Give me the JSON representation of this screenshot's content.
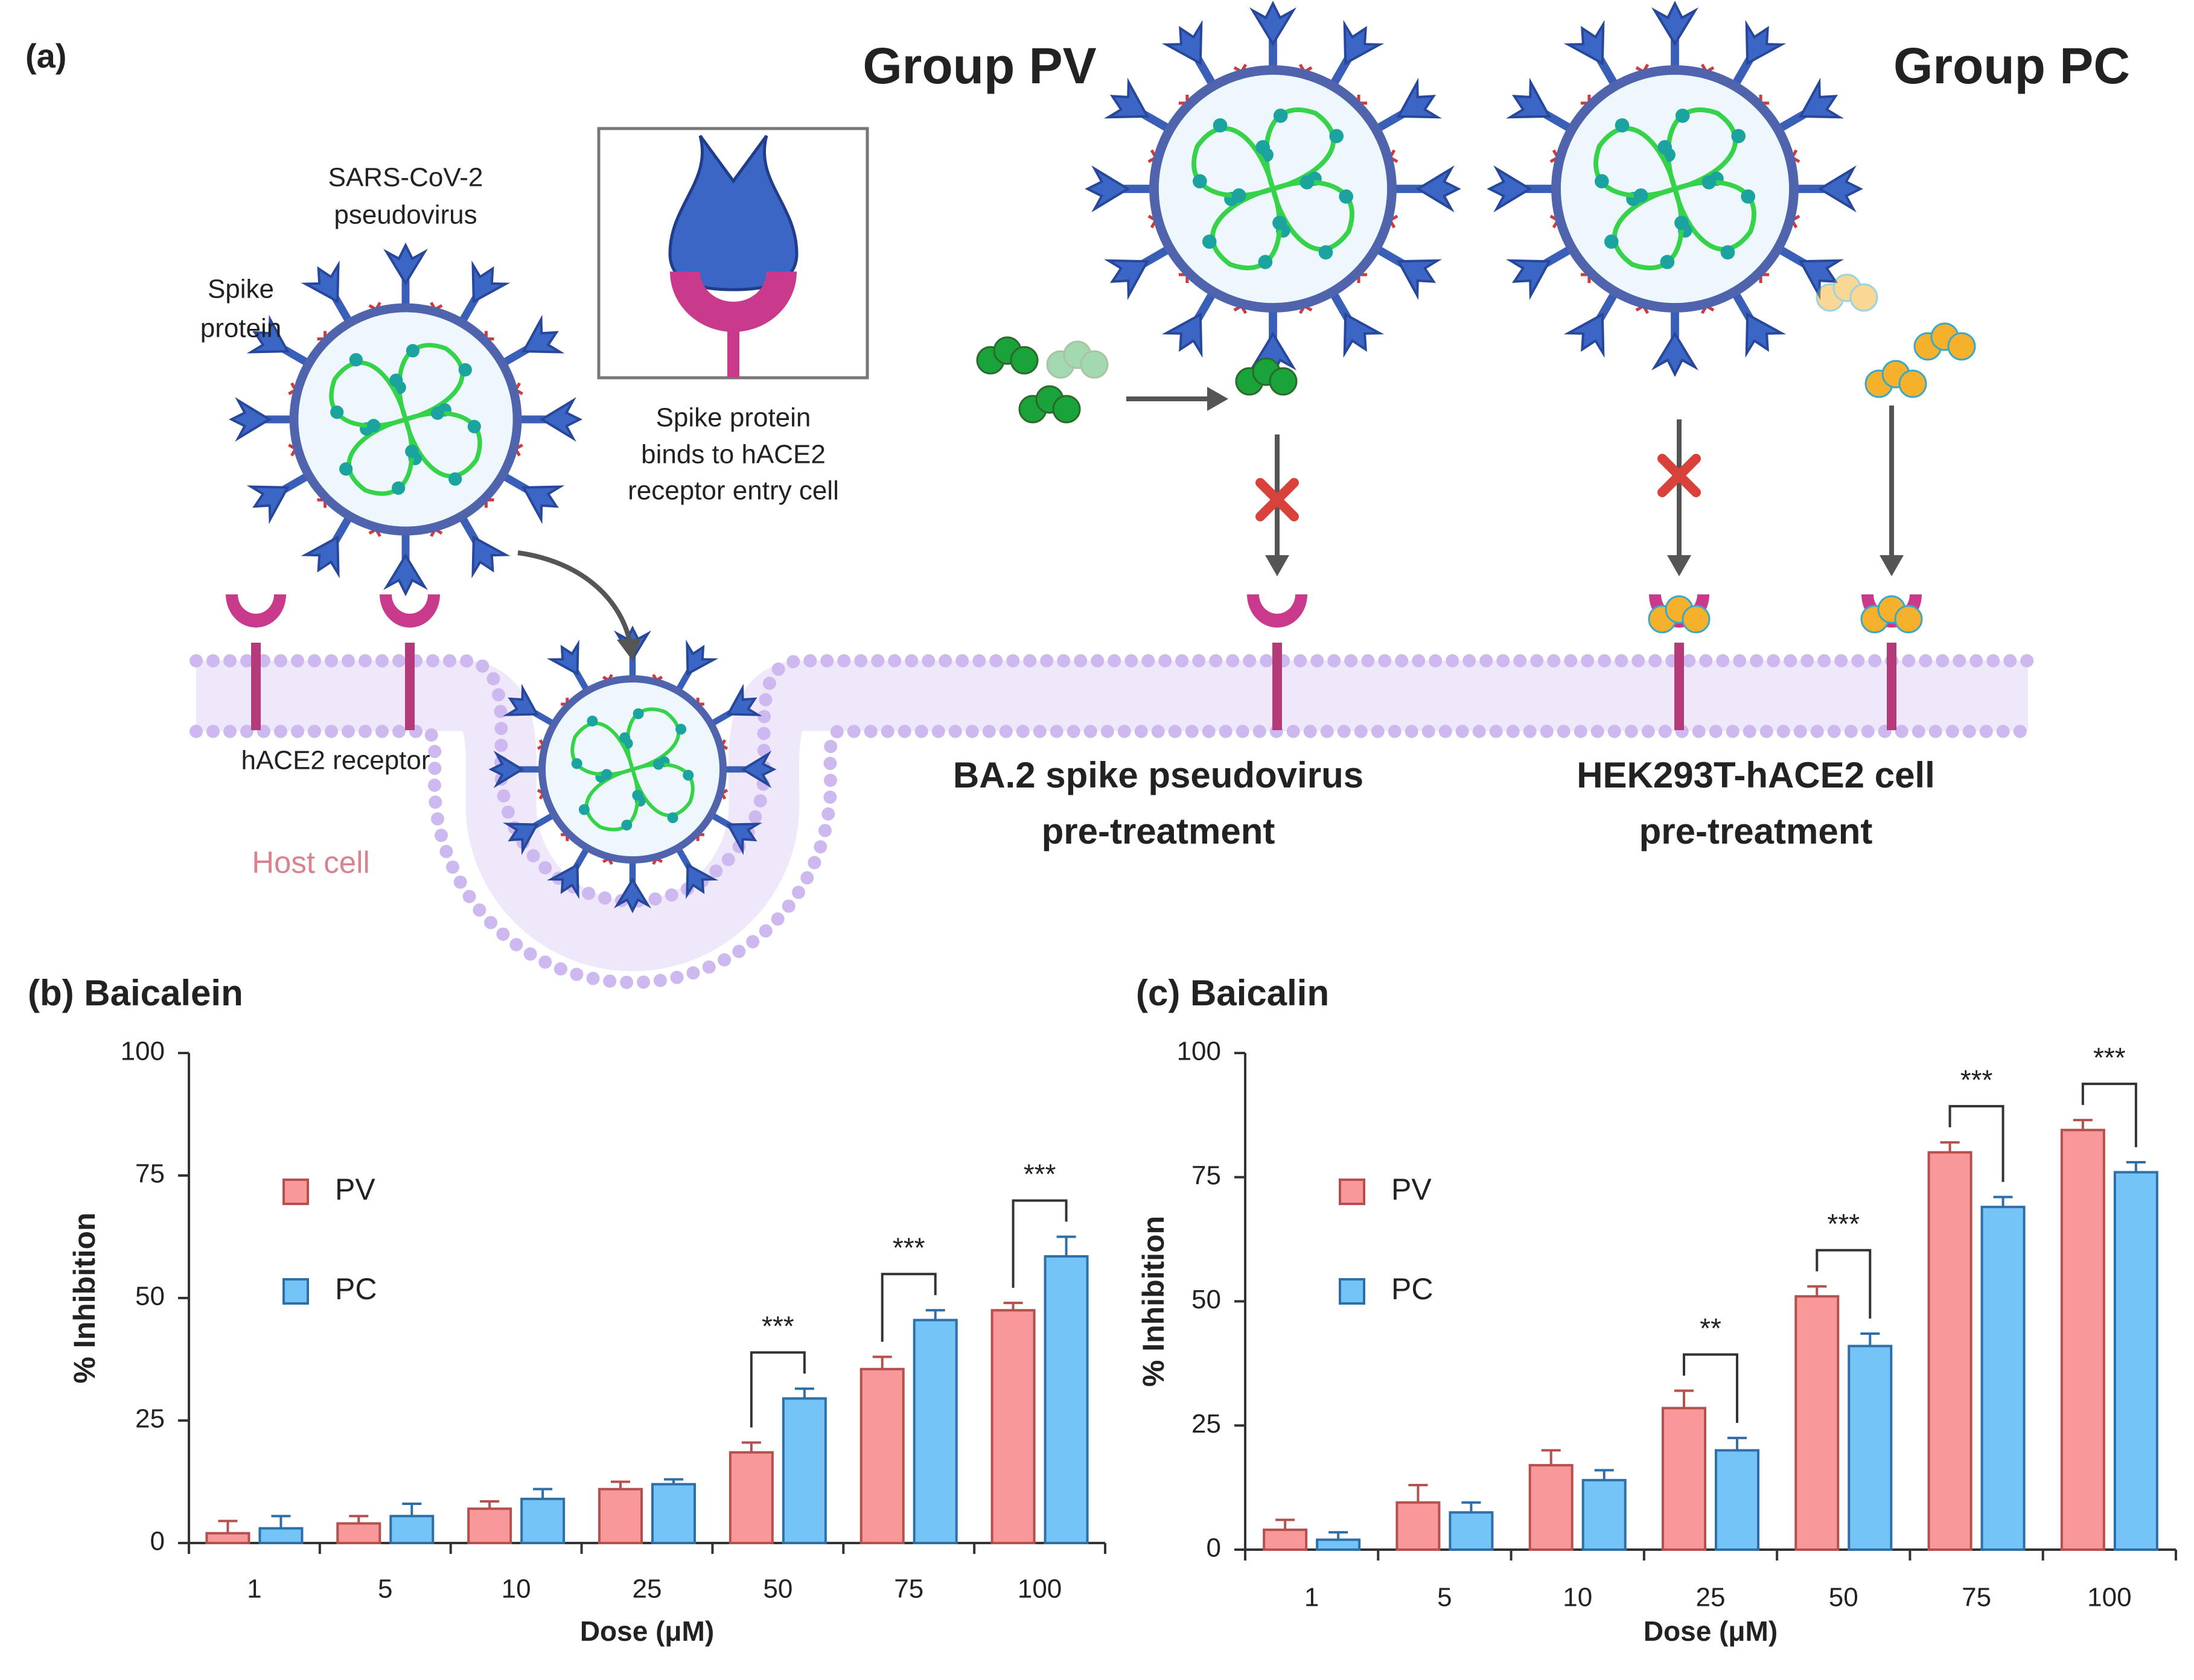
{
  "diagram": {
    "panel_label": "(a)",
    "group_pv": "Group PV",
    "group_pc": "Group PC",
    "virus_label": [
      "SARS-CoV-2",
      "pseudovirus"
    ],
    "spike_label": [
      "Spike",
      "protein"
    ],
    "binding_note": [
      "Spike protein",
      "binds to hACE2",
      "receptor entry cell"
    ],
    "receptor_label": "hACE2 receptor",
    "host_label": "Host cell",
    "pv_caption": [
      "BA.2 spike pseudovirus",
      "pre-treatment"
    ],
    "pc_caption": [
      "HEK293T-hACE2 cell",
      "pre-treatment"
    ]
  },
  "chart_data": [
    {
      "type": "bar",
      "title": "(b) Baicalein",
      "xlabel": "Dose (μM)",
      "ylabel": "% Inhibition",
      "categories": [
        "1",
        "5",
        "10",
        "25",
        "50",
        "75",
        "100"
      ],
      "series": [
        {
          "name": "PV",
          "color": "#f8989a",
          "edgecolor": "#b5504f",
          "values": [
            2,
            4,
            7,
            11,
            18.5,
            35.5,
            47.5
          ],
          "errors": [
            2.5,
            1.5,
            1.5,
            1.5,
            2,
            2.5,
            1.5
          ]
        },
        {
          "name": "PC",
          "color": "#75c4f8",
          "edgecolor": "#2f6fa8",
          "values": [
            3,
            5.5,
            9,
            12,
            29.5,
            45.5,
            58.5
          ],
          "errors": [
            2.5,
            2.5,
            2,
            1,
            2,
            2,
            4
          ]
        }
      ],
      "significance": [
        null,
        null,
        null,
        null,
        "***",
        "***",
        "***"
      ],
      "ylim": [
        0,
        100
      ],
      "yticks": [
        0,
        25,
        50,
        75,
        100
      ],
      "legend": "upper left"
    },
    {
      "type": "bar",
      "title": "(c) Baicalin",
      "xlabel": "Dose (μM)",
      "ylabel": "% Inhibition",
      "categories": [
        "1",
        "5",
        "10",
        "25",
        "50",
        "75",
        "100"
      ],
      "series": [
        {
          "name": "PV",
          "color": "#f8989a",
          "edgecolor": "#b5504f",
          "values": [
            4,
            9.5,
            17,
            28.5,
            51,
            80,
            84.5
          ],
          "errors": [
            2,
            3.5,
            3,
            3.5,
            2,
            2,
            2
          ]
        },
        {
          "name": "PC",
          "color": "#75c4f8",
          "edgecolor": "#2f6fa8",
          "values": [
            2,
            7.5,
            14,
            20,
            41,
            69,
            76
          ],
          "errors": [
            1.5,
            2,
            2,
            2.5,
            2.5,
            2,
            2
          ]
        }
      ],
      "significance": [
        null,
        null,
        null,
        "**",
        "***",
        "***",
        "***"
      ],
      "ylim": [
        0,
        100
      ],
      "yticks": [
        0,
        25,
        50,
        75,
        100
      ],
      "legend": "upper left"
    }
  ]
}
